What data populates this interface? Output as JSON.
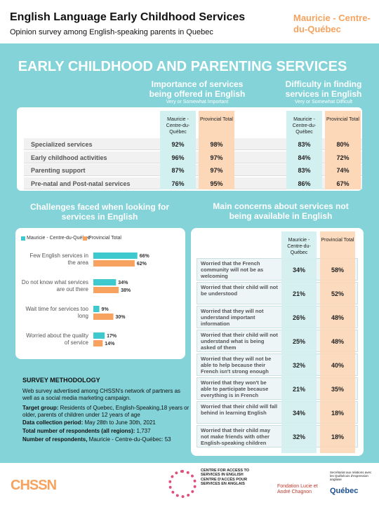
{
  "header": {
    "title": "English Language Early Childhood Services",
    "subtitle": "Opinion survey among English-speaking parents in Quebec",
    "region": "Mauricie - Centre-du-Québec"
  },
  "section_title": "EARLY CHILDHOOD AND PARENTING SERVICES",
  "importance_table": {
    "groups": [
      {
        "title": "Importance of services being offered in English",
        "note": "Very or Somewhat Important",
        "columns": [
          "Mauricie - Centre-du-Québec",
          "Provincial Total"
        ]
      },
      {
        "title": "Difficulty in finding services in English",
        "note": "Very or Somewhat Difficult",
        "columns": [
          "Mauricie - Centre-du-Québec",
          "Provincial Total"
        ]
      }
    ],
    "rows": [
      {
        "label": "Specialized services",
        "values": [
          "92%",
          "98%",
          "83%",
          "80%"
        ]
      },
      {
        "label": "Early childhood activities",
        "values": [
          "96%",
          "97%",
          "84%",
          "72%"
        ]
      },
      {
        "label": "Parenting support",
        "values": [
          "87%",
          "97%",
          "83%",
          "74%"
        ]
      },
      {
        "label": "Pre-natal and Post-natal services",
        "values": [
          "76%",
          "95%",
          "86%",
          "67%"
        ]
      }
    ]
  },
  "chart_data": {
    "type": "bar",
    "orientation": "horizontal",
    "title": "Challenges faced when looking for services in English",
    "categories": [
      "Few English services in the area",
      "Do not know what services are out there",
      "Wait time for services too long",
      "Worried about the quality of service"
    ],
    "series": [
      {
        "name": "Mauricie - Centre-du-Québec",
        "color": "#3ec9cf",
        "values": [
          66,
          34,
          9,
          17
        ],
        "value_labels": [
          "66%",
          "34%",
          "9%",
          "17%"
        ]
      },
      {
        "name": "Provincial Total",
        "color": "#f7a35f",
        "values": [
          62,
          38,
          30,
          14
        ],
        "value_labels": [
          "62%",
          "38%",
          "30%",
          "14%"
        ]
      }
    ]
  },
  "concerns_table": {
    "title": "Main concerns about services not being available in English",
    "columns": [
      "Mauricie - Centre-du-Québec",
      "Provincial Total"
    ],
    "rows": [
      {
        "label": "Worried that the French community will not be as welcoming",
        "values": [
          "34%",
          "58%"
        ]
      },
      {
        "label": "Worried that their child will not be understood",
        "values": [
          "21%",
          "52%"
        ]
      },
      {
        "label": "Worried that they will not understand important information",
        "values": [
          "26%",
          "48%"
        ]
      },
      {
        "label": "Worried that their child will not understand what is being asked of them",
        "values": [
          "25%",
          "48%"
        ]
      },
      {
        "label": "Worried that they will not be able to help because their French isn't strong enough",
        "values": [
          "32%",
          "40%"
        ]
      },
      {
        "label": "Worried that they won't be able to participate because everything is in French",
        "values": [
          "21%",
          "35%"
        ]
      },
      {
        "label": "Worried that their child will fall behind in learning English",
        "values": [
          "34%",
          "18%"
        ]
      },
      {
        "label": "Worried that their child may not make friends with other English-speaking children",
        "values": [
          "32%",
          "18%"
        ]
      }
    ]
  },
  "methodology": {
    "title": "SURVEY METHODOLOGY",
    "intro": "Web survey advertised among CHSSN's network of partners as well as a social media marketing campaign.",
    "items": [
      {
        "label": "Target group:",
        "text": "Residents of Quebec, English-Speaking,18 years or older, parents of children under 12 years of age"
      },
      {
        "label": "Data collection period:",
        "text": "May 28th to June 30th, 2021"
      },
      {
        "label": "Total number of respondents (all regions):",
        "text": "1,737"
      },
      {
        "label": "Number of respondents,",
        "text": "Mauricie - Centre-du-Québec: 53"
      }
    ]
  },
  "footer": {
    "chssn": "CHSSN",
    "casa_en": "CENTRE FOR ACCESS TO SERVICES IN ENGLISH",
    "casa_fr": "CENTRE D'ACCÈS POUR SERVICES EN ANGLAIS",
    "fondation": "Fondation Lucie et André Chagnon",
    "secretariat": "Secrétariat aux relations avec les Québécois d'expression anglaise",
    "quebec": "Québec"
  }
}
